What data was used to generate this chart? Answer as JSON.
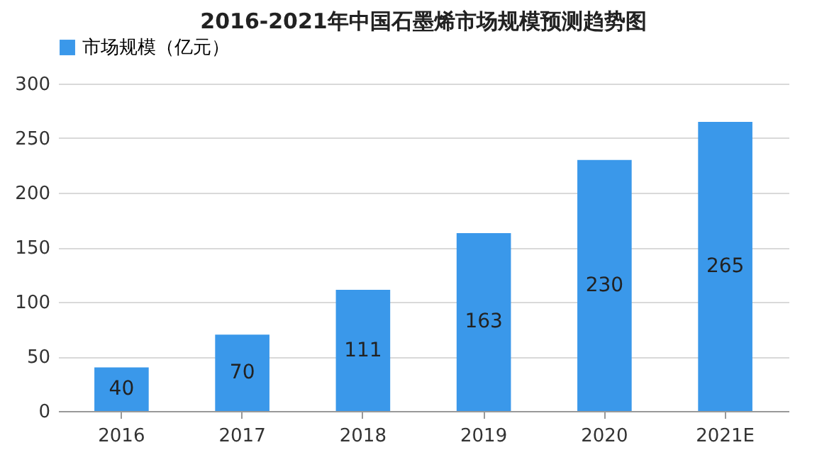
{
  "chart_data": {
    "type": "bar",
    "title": "2016-2021年中国石墨烯市场规模预测趋势图",
    "categories": [
      "2016",
      "2017",
      "2018",
      "2019",
      "2020",
      "2021E"
    ],
    "series": [
      {
        "name": "市场规模（亿元）",
        "color": "#3a98ea",
        "values": [
          40,
          70,
          111,
          163,
          230,
          265
        ]
      }
    ],
    "ylim": [
      0,
      300
    ],
    "yticks": [
      0,
      50,
      100,
      150,
      200,
      250,
      300
    ],
    "grid": "y",
    "legend": "top",
    "data_labels": true
  }
}
